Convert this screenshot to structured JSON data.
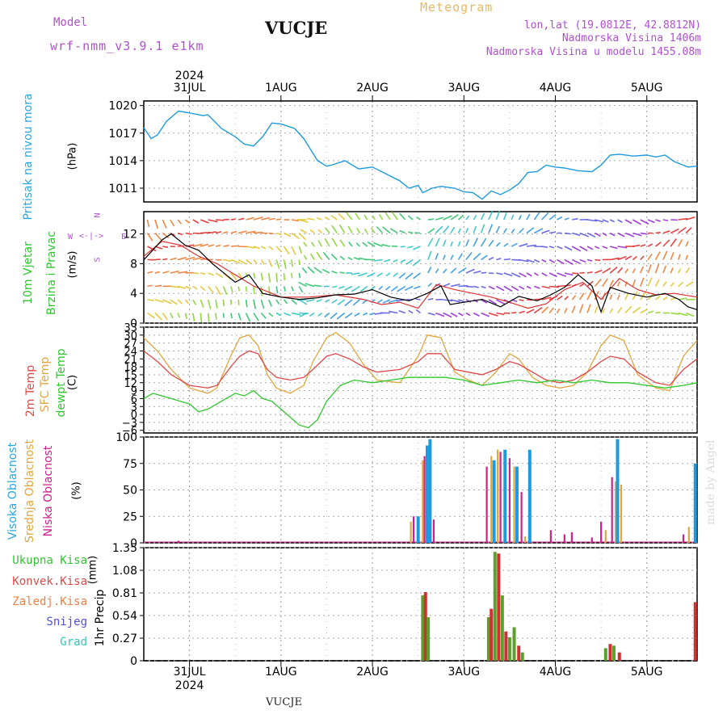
{
  "header": {
    "model_label": "Model",
    "model_value": "wrf-nmm_v3.9.1  e1km",
    "station": "VUCJE",
    "meteogram": "Meteogram",
    "lonlat": "lon,lat (19.0812E, 42.8812N)",
    "altitude": "Nadmorska Visina 1406m",
    "model_altitude": "Nadmorska Visina u modelu 1455.08m"
  },
  "footer": {
    "station": "VUCJE",
    "signature": "made by Angel"
  },
  "time_axis": {
    "year": "2024",
    "labels": [
      "31JUL",
      "1AUG",
      "2AUG",
      "3AUG",
      "4AUG",
      "5AUG"
    ]
  },
  "colors": {
    "pressure": "#1e9be0",
    "wind_speed": "#000000",
    "wind_gust": "#e03030",
    "temp_2m": "#e04848",
    "temp_sfc": "#e0a640",
    "dewpoint": "#2ec82e",
    "cloud_high": "#1e9be0",
    "cloud_mid": "#e0a640",
    "cloud_low": "#d0208a",
    "rain_total": "#5aa02c",
    "rain_conv": "#d03030",
    "rain_strat": "#f08040"
  },
  "panels": {
    "pressure": {
      "label": "Pritisak na nivou mora",
      "unit": "(hPa)"
    },
    "wind": {
      "label1": "10m Vjetar",
      "label2": "Brzina i Pravac",
      "unit": "(m/s)",
      "compass": {
        "n": "N",
        "w": "W",
        "e": "E",
        "s": "S"
      }
    },
    "temp": {
      "label1": "2m Temp",
      "label2": "SFC Temp",
      "label3": "dewpt Temp",
      "unit": "(C)"
    },
    "cloud": {
      "label1": "Visoka Oblacnost",
      "label2": "Srednja Oblacnost",
      "label3": "Niska Oblacnost",
      "unit": "(%)"
    },
    "precip": {
      "label": "1hr Precip",
      "unit": "(mm)",
      "legend": [
        "Ukupna Kisa",
        "Konvek.Kisa",
        "Zaledj.Kisa",
        "Snijeg",
        "Grad"
      ]
    }
  },
  "chart_data": [
    {
      "type": "line",
      "title": "Pritisak na nivou mora",
      "ylabel": "(hPa)",
      "yticks": [
        "1020",
        "1017",
        "1014",
        "1011"
      ],
      "ylim": [
        1009.5,
        1020.5
      ],
      "x_start_day": -0.5,
      "x_end_day": 5.55,
      "x_unit": "days after 31 JUL 2024 00:00",
      "series": [
        {
          "name": "Pritisak",
          "x": [
            -0.5,
            -0.42,
            -0.35,
            -0.25,
            -0.12,
            0.0,
            0.15,
            0.2,
            0.35,
            0.5,
            0.6,
            0.7,
            0.8,
            0.9,
            1.0,
            1.15,
            1.25,
            1.4,
            1.5,
            1.55,
            1.7,
            1.85,
            2.0,
            2.1,
            2.3,
            2.4,
            2.5,
            2.55,
            2.65,
            2.75,
            2.9,
            3.0,
            3.1,
            3.2,
            3.3,
            3.4,
            3.5,
            3.6,
            3.7,
            3.8,
            3.9,
            4.0,
            4.1,
            4.25,
            4.4,
            4.5,
            4.6,
            4.7,
            4.85,
            5.0,
            5.1,
            5.2,
            5.3,
            5.45,
            5.55
          ],
          "values": [
            1017.6,
            1016.4,
            1016.8,
            1018.3,
            1019.4,
            1019.2,
            1018.9,
            1019.0,
            1017.5,
            1016.6,
            1015.8,
            1015.6,
            1016.6,
            1018.1,
            1018.0,
            1017.5,
            1016.4,
            1014.0,
            1013.4,
            1013.5,
            1014.0,
            1013.1,
            1013.3,
            1012.8,
            1011.8,
            1011.0,
            1011.3,
            1010.5,
            1011.0,
            1011.2,
            1011.0,
            1010.6,
            1010.5,
            1009.8,
            1010.7,
            1010.3,
            1010.8,
            1011.5,
            1012.7,
            1012.8,
            1013.5,
            1013.3,
            1013.2,
            1012.9,
            1012.8,
            1013.5,
            1014.6,
            1014.7,
            1014.5,
            1014.6,
            1014.4,
            1014.6,
            1013.9,
            1013.3,
            1013.4
          ]
        }
      ]
    },
    {
      "type": "line",
      "title": "10m Vjetar Brzina i Pravac",
      "ylabel": "(m/s)",
      "yticks": [
        "12",
        "8",
        "4",
        "0"
      ],
      "ylim": [
        0,
        15
      ],
      "x_start_day": -0.5,
      "x_end_day": 5.55,
      "series": [
        {
          "name": "brzina",
          "x": [
            -0.5,
            -0.3,
            -0.2,
            -0.05,
            0.1,
            0.25,
            0.4,
            0.5,
            0.65,
            0.8,
            1.0,
            1.2,
            1.4,
            1.6,
            1.8,
            2.0,
            2.2,
            2.4,
            2.6,
            2.75,
            2.85,
            3.0,
            3.2,
            3.4,
            3.6,
            3.8,
            3.95,
            4.1,
            4.25,
            4.4,
            4.5,
            4.6,
            4.8,
            5.0,
            5.2,
            5.35,
            5.45,
            5.55
          ],
          "values": [
            8.5,
            11.2,
            12.0,
            10.5,
            9.8,
            8.0,
            6.5,
            5.5,
            6.5,
            4.0,
            3.5,
            3.2,
            3.4,
            3.8,
            3.9,
            4.5,
            3.5,
            3.0,
            4.0,
            5.0,
            2.5,
            2.8,
            3.2,
            2.2,
            3.6,
            3.0,
            3.8,
            4.8,
            6.5,
            5.0,
            1.5,
            4.8,
            4.0,
            3.5,
            4.0,
            3.2,
            2.2,
            1.8
          ]
        },
        {
          "name": "udar",
          "x": [
            -0.5,
            -0.3,
            -0.1,
            0.1,
            0.3,
            0.5,
            0.7,
            1.0,
            1.3,
            1.6,
            1.9,
            2.1,
            2.3,
            2.5,
            2.7,
            2.9,
            3.1,
            3.3,
            3.5,
            3.7,
            3.9,
            4.1,
            4.3,
            4.5,
            4.7,
            4.9,
            5.1,
            5.3,
            5.55
          ],
          "values": [
            9.0,
            11.0,
            10.5,
            9.0,
            8.0,
            6.5,
            5.0,
            3.5,
            3.5,
            3.8,
            3.2,
            2.5,
            2.8,
            2.0,
            5.2,
            4.5,
            4.0,
            3.5,
            2.8,
            2.0,
            2.6,
            4.5,
            5.5,
            3.2,
            6.0,
            4.5,
            3.8,
            4.0,
            3.5
          ]
        }
      ]
    },
    {
      "type": "line",
      "title": "2m Temp / SFC Temp / dewpt Temp",
      "ylabel": "(C)",
      "yticks": [
        "33",
        "30",
        "27",
        "24",
        "21",
        "18",
        "15",
        "12",
        "9",
        "6",
        "3",
        "0",
        "−3",
        "−6"
      ],
      "ylim": [
        -7,
        33
      ],
      "x_start_day": -0.5,
      "x_end_day": 5.55,
      "series": [
        {
          "name": "2m Temp",
          "x": [
            -0.5,
            -0.35,
            -0.2,
            0.0,
            0.2,
            0.3,
            0.45,
            0.55,
            0.65,
            0.75,
            0.85,
            0.95,
            1.1,
            1.25,
            1.35,
            1.5,
            1.6,
            1.75,
            1.9,
            2.05,
            2.3,
            2.5,
            2.6,
            2.75,
            2.9,
            3.05,
            3.2,
            3.35,
            3.5,
            3.6,
            3.75,
            3.9,
            4.05,
            4.2,
            4.35,
            4.5,
            4.6,
            4.75,
            4.9,
            5.1,
            5.25,
            5.4,
            5.55
          ],
          "values": [
            24,
            20,
            15,
            11,
            10,
            11,
            18,
            22,
            24,
            23,
            17,
            14,
            13,
            14,
            17,
            22,
            23,
            21,
            18,
            16,
            17,
            20,
            23,
            23,
            17,
            16,
            15,
            17,
            20,
            19,
            16,
            13,
            12,
            13,
            16,
            20,
            22,
            21,
            16,
            12,
            11,
            17,
            21
          ]
        },
        {
          "name": "SFC Temp",
          "x": [
            -0.5,
            -0.35,
            -0.2,
            0.0,
            0.2,
            0.3,
            0.45,
            0.55,
            0.65,
            0.75,
            0.85,
            0.95,
            1.1,
            1.25,
            1.35,
            1.5,
            1.6,
            1.75,
            1.9,
            2.05,
            2.3,
            2.5,
            2.6,
            2.75,
            2.9,
            3.05,
            3.2,
            3.35,
            3.5,
            3.6,
            3.75,
            3.9,
            4.05,
            4.2,
            4.35,
            4.5,
            4.6,
            4.75,
            4.9,
            5.1,
            5.25,
            5.4,
            5.55
          ],
          "values": [
            29,
            24,
            17,
            10,
            8,
            10,
            22,
            29,
            30,
            26,
            15,
            10,
            8,
            11,
            20,
            29,
            31,
            27,
            19,
            13,
            12,
            22,
            30,
            29,
            16,
            13,
            11,
            16,
            23,
            21,
            14,
            11,
            10,
            11,
            16,
            26,
            30,
            28,
            15,
            10,
            9,
            22,
            28
          ]
        },
        {
          "name": "dewpt Temp",
          "x": [
            -0.5,
            -0.4,
            -0.3,
            -0.2,
            -0.1,
            0.0,
            0.1,
            0.2,
            0.35,
            0.5,
            0.6,
            0.7,
            0.8,
            0.9,
            1.0,
            1.1,
            1.2,
            1.3,
            1.4,
            1.5,
            1.65,
            1.8,
            2.0,
            2.2,
            2.4,
            2.6,
            2.8,
            3.0,
            3.2,
            3.4,
            3.6,
            3.8,
            4.0,
            4.2,
            4.4,
            4.6,
            4.8,
            5.0,
            5.2,
            5.4,
            5.55
          ],
          "values": [
            6,
            8,
            7,
            6,
            5,
            4,
            1,
            2,
            5,
            8,
            7,
            9,
            6,
            5,
            2,
            -1,
            -4,
            -5,
            -2,
            5,
            11,
            13,
            12,
            13,
            14,
            14,
            14,
            13,
            11,
            12,
            13,
            12,
            13,
            12,
            13,
            12,
            12,
            11,
            10,
            11,
            12
          ]
        }
      ]
    },
    {
      "type": "bar",
      "title": "Visoka / Srednja / Niska Oblacnost",
      "ylabel": "(%)",
      "yticks": [
        "100",
        "75",
        "50",
        "25",
        "0"
      ],
      "ylim": [
        0,
        100
      ],
      "bars": [
        {
          "x": 2.42,
          "series": "Srednja",
          "value": 20
        },
        {
          "x": 2.45,
          "series": "Niska",
          "value": 25
        },
        {
          "x": 2.5,
          "series": "Visoka",
          "value": 25
        },
        {
          "x": 2.55,
          "series": "Srednja",
          "value": 78
        },
        {
          "x": 2.57,
          "series": "Niska",
          "value": 82
        },
        {
          "x": 2.6,
          "series": "Visoka",
          "value": 92
        },
        {
          "x": 2.63,
          "series": "Visoka",
          "value": 98
        },
        {
          "x": 2.67,
          "series": "Niska",
          "value": 22
        },
        {
          "x": 3.25,
          "series": "Niska",
          "value": 72
        },
        {
          "x": 3.3,
          "series": "Srednja",
          "value": 82
        },
        {
          "x": 3.33,
          "series": "Visoka",
          "value": 78
        },
        {
          "x": 3.37,
          "series": "Srednja",
          "value": 88
        },
        {
          "x": 3.4,
          "series": "Niska",
          "value": 86
        },
        {
          "x": 3.45,
          "series": "Visoka",
          "value": 88
        },
        {
          "x": 3.5,
          "series": "Niska",
          "value": 80
        },
        {
          "x": 3.55,
          "series": "Srednja",
          "value": 72
        },
        {
          "x": 3.58,
          "series": "Visoka",
          "value": 72
        },
        {
          "x": 3.63,
          "series": "Niska",
          "value": 48
        },
        {
          "x": 3.67,
          "series": "Srednja",
          "value": 6
        },
        {
          "x": 3.72,
          "series": "Visoka",
          "value": 88
        },
        {
          "x": 3.95,
          "series": "Niska",
          "value": 12
        },
        {
          "x": 4.1,
          "series": "Niska",
          "value": 8
        },
        {
          "x": 4.18,
          "series": "Niska",
          "value": 10
        },
        {
          "x": 4.4,
          "series": "Niska",
          "value": 5
        },
        {
          "x": 4.5,
          "series": "Niska",
          "value": 20
        },
        {
          "x": 4.55,
          "series": "Srednja",
          "value": 12
        },
        {
          "x": 4.62,
          "series": "Niska",
          "value": 62
        },
        {
          "x": 4.66,
          "series": "Srednja",
          "value": 58
        },
        {
          "x": 4.68,
          "series": "Visoka",
          "value": 98
        },
        {
          "x": 4.72,
          "series": "Srednja",
          "value": 55
        },
        {
          "x": 5.4,
          "series": "Niska",
          "value": 8
        },
        {
          "x": 5.46,
          "series": "Srednja",
          "value": 15
        },
        {
          "x": 5.53,
          "series": "Visoka",
          "value": 75
        },
        {
          "x": -0.12,
          "series": "Niska",
          "value": 2
        }
      ]
    },
    {
      "type": "bar",
      "title": "1hr Precip",
      "ylabel": "(mm)",
      "yticks": [
        "1.35",
        "1.08",
        "0.81",
        "0.54",
        "0.27",
        "0"
      ],
      "ylim": [
        0,
        1.35
      ],
      "bars": [
        {
          "x": 2.55,
          "series": "Ukupna Kisa",
          "value": 0.78
        },
        {
          "x": 2.58,
          "series": "Konvek.Kisa",
          "value": 0.82
        },
        {
          "x": 2.61,
          "series": "Ukupna Kisa",
          "value": 0.52
        },
        {
          "x": 3.27,
          "series": "Ukupna Kisa",
          "value": 0.52
        },
        {
          "x": 3.3,
          "series": "Konvek.Kisa",
          "value": 0.62
        },
        {
          "x": 3.34,
          "series": "Ukupna Kisa",
          "value": 1.3
        },
        {
          "x": 3.38,
          "series": "Konvek.Kisa",
          "value": 1.28
        },
        {
          "x": 3.42,
          "series": "Ukupna Kisa",
          "value": 0.78
        },
        {
          "x": 3.46,
          "series": "Konvek.Kisa",
          "value": 0.35
        },
        {
          "x": 3.5,
          "series": "Ukupna Kisa",
          "value": 0.28
        },
        {
          "x": 3.55,
          "series": "Ukupna Kisa",
          "value": 0.4
        },
        {
          "x": 3.6,
          "series": "Konvek.Kisa",
          "value": 0.18
        },
        {
          "x": 3.64,
          "series": "Ukupna Kisa",
          "value": 0.1
        },
        {
          "x": 4.55,
          "series": "Ukupna Kisa",
          "value": 0.15
        },
        {
          "x": 4.6,
          "series": "Konvek.Kisa",
          "value": 0.2
        },
        {
          "x": 4.64,
          "series": "Ukupna Kisa",
          "value": 0.18
        },
        {
          "x": 4.7,
          "series": "Konvek.Kisa",
          "value": 0.1
        },
        {
          "x": 5.53,
          "series": "Konvek.Kisa",
          "value": 0.7
        }
      ]
    }
  ]
}
